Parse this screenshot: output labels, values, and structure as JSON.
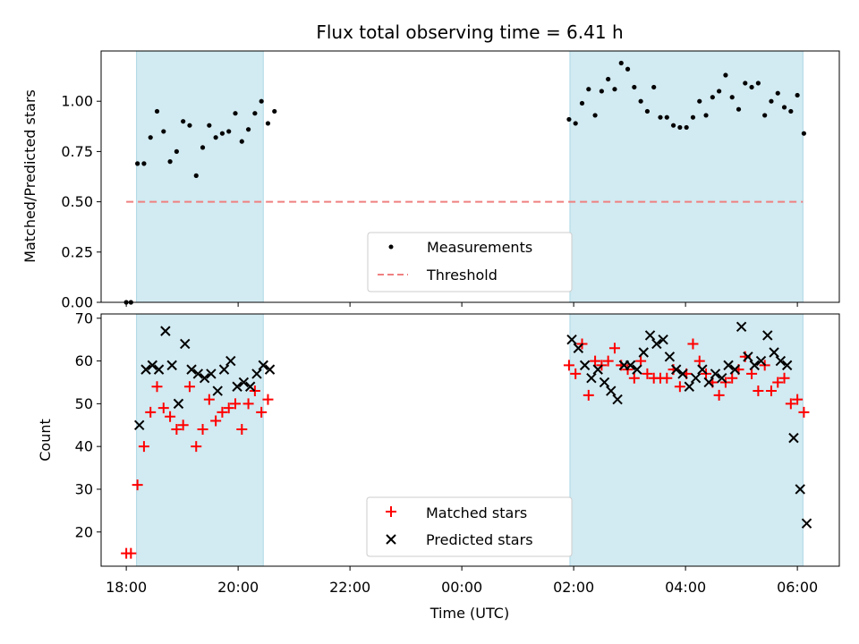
{
  "chart_data": [
    {
      "type": "scatter",
      "title": "Flux total observing time = 6.41 h",
      "xlabel": "",
      "ylabel": "Matched/Predicted stars",
      "ylim": [
        0,
        1.25
      ],
      "xlim_hours": [
        17.55,
        30.75
      ],
      "yticks": [
        "0.00",
        "0.25",
        "0.50",
        "0.75",
        "1.00"
      ],
      "grid": false,
      "legend_position": "lower-center",
      "shaded_intervals": [
        [
          "18:11",
          "20:27"
        ],
        [
          "01:56",
          "06:06"
        ]
      ],
      "threshold": 0.5,
      "colors": {
        "measurements": "#000000",
        "threshold": "#f08080",
        "shade": "#add8e6"
      },
      "legend": [
        {
          "label": "Measurements",
          "marker": "dot"
        },
        {
          "label": "Threshold",
          "marker": "dashed-line"
        }
      ],
      "series": [
        {
          "name": "Measurements",
          "x": [
            "18:00",
            "18:05",
            "18:12",
            "18:19",
            "18:26",
            "18:33",
            "18:40",
            "18:47",
            "18:54",
            "19:01",
            "19:08",
            "19:15",
            "19:22",
            "19:29",
            "19:36",
            "19:43",
            "19:50",
            "19:57",
            "20:04",
            "20:11",
            "20:18",
            "20:25",
            "20:32",
            "20:39",
            "01:55",
            "02:02",
            "02:09",
            "02:16",
            "02:23",
            "02:30",
            "02:37",
            "02:44",
            "02:51",
            "02:58",
            "03:05",
            "03:12",
            "03:19",
            "03:26",
            "03:33",
            "03:40",
            "03:47",
            "03:54",
            "04:01",
            "04:08",
            "04:15",
            "04:22",
            "04:29",
            "04:36",
            "04:43",
            "04:50",
            "04:57",
            "05:04",
            "05:11",
            "05:18",
            "05:25",
            "05:32",
            "05:39",
            "05:46",
            "05:53",
            "06:00",
            "06:07"
          ],
          "values": [
            0.0,
            0.0,
            0.69,
            0.69,
            0.82,
            0.95,
            0.85,
            0.7,
            0.75,
            0.9,
            0.88,
            0.63,
            0.77,
            0.88,
            0.82,
            0.84,
            0.85,
            0.94,
            0.8,
            0.86,
            0.94,
            1.0,
            0.89,
            0.95,
            0.91,
            0.89,
            0.99,
            1.06,
            0.93,
            1.05,
            1.11,
            1.06,
            1.19,
            1.16,
            1.07,
            1.0,
            0.95,
            1.07,
            0.92,
            0.92,
            0.88,
            0.87,
            0.87,
            0.92,
            1.0,
            0.93,
            1.02,
            1.05,
            1.13,
            1.02,
            0.96,
            1.09,
            1.07,
            1.09,
            0.93,
            1.0,
            1.04,
            0.97,
            0.95,
            1.03,
            0.84
          ]
        }
      ]
    },
    {
      "type": "scatter",
      "xlabel": "Time (UTC)",
      "ylabel": "Count",
      "ylim": [
        12,
        71
      ],
      "xlim_hours": [
        17.55,
        30.75
      ],
      "yticks": [
        "20",
        "30",
        "40",
        "50",
        "60",
        "70"
      ],
      "xticks": [
        "18:00",
        "20:00",
        "22:00",
        "00:00",
        "02:00",
        "04:00",
        "06:00"
      ],
      "grid": false,
      "legend_position": "lower-center",
      "shaded_intervals": [
        [
          "18:11",
          "20:27"
        ],
        [
          "01:56",
          "06:06"
        ]
      ],
      "colors": {
        "matched": "#ff0000",
        "predicted": "#000000",
        "shade": "#add8e6"
      },
      "legend": [
        {
          "label": "Matched stars",
          "marker": "plus"
        },
        {
          "label": "Predicted stars",
          "marker": "x"
        }
      ],
      "series": [
        {
          "name": "Matched stars",
          "x": [
            "18:00",
            "18:05",
            "18:12",
            "18:19",
            "18:26",
            "18:33",
            "18:40",
            "18:47",
            "18:54",
            "19:01",
            "19:08",
            "19:15",
            "19:22",
            "19:29",
            "19:36",
            "19:43",
            "19:50",
            "19:57",
            "20:04",
            "20:11",
            "20:18",
            "20:25",
            "20:32",
            "01:55",
            "02:02",
            "02:09",
            "02:16",
            "02:23",
            "02:30",
            "02:37",
            "02:44",
            "02:51",
            "02:58",
            "03:05",
            "03:12",
            "03:19",
            "03:26",
            "03:33",
            "03:40",
            "03:47",
            "03:54",
            "04:01",
            "04:08",
            "04:15",
            "04:22",
            "04:29",
            "04:36",
            "04:43",
            "04:50",
            "04:57",
            "05:04",
            "05:11",
            "05:18",
            "05:25",
            "05:32",
            "05:39",
            "05:46",
            "05:53",
            "06:00",
            "06:07"
          ],
          "values": [
            15,
            15,
            31,
            40,
            48,
            54,
            49,
            47,
            44,
            45,
            54,
            40,
            44,
            51,
            46,
            48,
            49,
            50,
            44,
            50,
            53,
            48,
            51,
            59,
            57,
            64,
            52,
            60,
            59,
            60,
            63,
            59,
            58,
            56,
            60,
            57,
            56,
            56,
            56,
            58,
            54,
            57,
            64,
            60,
            57,
            55,
            52,
            55,
            56,
            58,
            61,
            57,
            53,
            59,
            53,
            55,
            56,
            50,
            51,
            48
          ]
        },
        {
          "name": "Predicted stars",
          "x": [
            "18:14",
            "18:21",
            "18:28",
            "18:35",
            "18:42",
            "18:49",
            "18:56",
            "19:03",
            "19:10",
            "19:17",
            "19:24",
            "19:31",
            "19:38",
            "19:45",
            "19:52",
            "19:59",
            "20:06",
            "20:13",
            "20:20",
            "20:27",
            "20:34",
            "01:58",
            "02:05",
            "02:12",
            "02:19",
            "02:26",
            "02:33",
            "02:40",
            "02:47",
            "02:54",
            "03:01",
            "03:08",
            "03:15",
            "03:22",
            "03:29",
            "03:36",
            "03:43",
            "03:50",
            "03:57",
            "04:04",
            "04:11",
            "04:18",
            "04:25",
            "04:32",
            "04:39",
            "04:46",
            "04:53",
            "05:00",
            "05:07",
            "05:14",
            "05:21",
            "05:28",
            "05:35",
            "05:42",
            "05:49",
            "05:56",
            "06:03",
            "06:10"
          ],
          "values": [
            45,
            58,
            59,
            58,
            67,
            59,
            50,
            64,
            58,
            57,
            56,
            57,
            53,
            58,
            60,
            54,
            55,
            54,
            57,
            59,
            58,
            65,
            63,
            59,
            56,
            58,
            55,
            53,
            51,
            59,
            59,
            58,
            62,
            66,
            64,
            65,
            61,
            58,
            57,
            54,
            56,
            58,
            55,
            57,
            56,
            59,
            58,
            68,
            61,
            59,
            60,
            66,
            62,
            60,
            59,
            42,
            30,
            22
          ]
        }
      ]
    }
  ]
}
